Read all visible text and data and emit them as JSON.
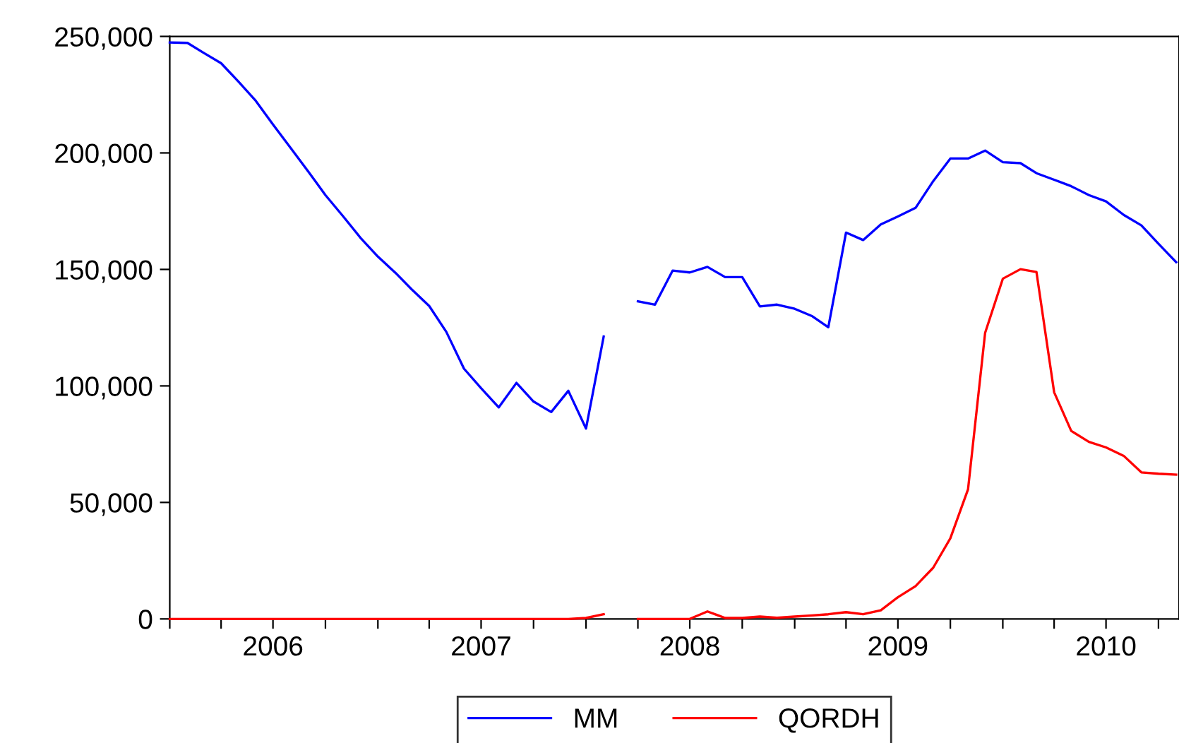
{
  "chart_data": {
    "type": "line",
    "x": [
      "2006-01",
      "2006-02",
      "2006-03",
      "2006-04",
      "2006-05",
      "2006-06",
      "2006-07",
      "2006-08",
      "2006-09",
      "2006-10",
      "2006-11",
      "2006-12",
      "2007-01",
      "2007-02",
      "2007-03",
      "2007-04",
      "2007-05",
      "2007-06",
      "2007-07",
      "2007-08",
      "2007-09",
      "2007-10",
      "2007-11",
      "2007-12",
      "2008-01",
      "2008-02",
      "2008-03",
      "2008-04",
      "2008-05",
      "2008-06",
      "2008-07",
      "2008-08",
      "2008-09",
      "2008-10",
      "2008-11",
      "2008-12",
      "2009-01",
      "2009-02",
      "2009-03",
      "2009-04",
      "2009-05",
      "2009-06",
      "2009-07",
      "2009-08",
      "2009-09",
      "2009-10",
      "2009-11",
      "2009-12",
      "2010-01",
      "2010-02",
      "2010-03",
      "2010-04",
      "2010-05",
      "2010-06",
      "2010-07",
      "2010-08",
      "2010-09",
      "2010-10",
      "2010-11"
    ],
    "series": [
      {
        "name": "MM",
        "color": "#0000ff",
        "values": [
          247400,
          247200,
          243000,
          238500,
          230700,
          222300,
          212200,
          202100,
          192000,
          181900,
          172800,
          163700,
          155500,
          148500,
          141500,
          134300,
          123200,
          107400,
          99000,
          90800,
          101300,
          93300,
          88800,
          97900,
          81700,
          121200,
          null,
          136300,
          134900,
          149500,
          148700,
          151100,
          146700,
          146700,
          134100,
          134900,
          133100,
          129900,
          125200,
          165800,
          162600,
          169300,
          172700,
          176400,
          187900,
          197600,
          197600,
          201000,
          196000,
          195600,
          191300,
          188500,
          185700,
          181900,
          179200,
          173400,
          168900,
          161000,
          153100
        ]
      },
      {
        "name": "QORDH",
        "color": "#ff0000",
        "values": [
          0,
          0,
          0,
          0,
          0,
          0,
          0,
          0,
          0,
          0,
          0,
          0,
          0,
          0,
          0,
          0,
          0,
          0,
          0,
          0,
          0,
          0,
          0,
          0,
          400,
          2000,
          null,
          0,
          0,
          0,
          0,
          3200,
          400,
          400,
          1000,
          500,
          1000,
          1500,
          2000,
          2900,
          2000,
          3700,
          9300,
          14100,
          22000,
          34600,
          55600,
          122800,
          146000,
          150100,
          148900,
          97300,
          80700,
          76000,
          73600,
          70000,
          62900,
          62300,
          61900
        ]
      }
    ],
    "xlim": [
      "2006-01-01",
      "2010-11-06"
    ],
    "xticks": [
      {
        "value": "2006-01-01",
        "label": null
      },
      {
        "value": "2006-04-01",
        "label": null
      },
      {
        "value": "2006-07-01",
        "label": "2006"
      },
      {
        "value": "2006-10-01",
        "label": null
      },
      {
        "value": "2007-01-01",
        "label": null
      },
      {
        "value": "2007-04-01",
        "label": null
      },
      {
        "value": "2007-07-01",
        "label": "2007"
      },
      {
        "value": "2007-10-01",
        "label": null
      },
      {
        "value": "2008-01-01",
        "label": null
      },
      {
        "value": "2008-04-01",
        "label": null
      },
      {
        "value": "2008-07-01",
        "label": "2008"
      },
      {
        "value": "2008-10-01",
        "label": null
      },
      {
        "value": "2009-01-01",
        "label": null
      },
      {
        "value": "2009-04-01",
        "label": null
      },
      {
        "value": "2009-07-01",
        "label": "2009"
      },
      {
        "value": "2009-10-01",
        "label": null
      },
      {
        "value": "2010-01-01",
        "label": null
      },
      {
        "value": "2010-04-01",
        "label": null
      },
      {
        "value": "2010-07-01",
        "label": "2010"
      },
      {
        "value": "2010-10-01",
        "label": null
      }
    ],
    "ylim": [
      0,
      250000
    ],
    "yticks": [
      0,
      {
        "value": 50000,
        "label": "50,000"
      },
      {
        "value": 100000,
        "label": "100,000"
      },
      {
        "value": 150000,
        "label": "150,000"
      },
      {
        "value": 200000,
        "label": "200,000"
      },
      {
        "value": 250000,
        "label": "250,000"
      }
    ],
    "grid": false,
    "legend": "bottom",
    "line_style": "solid"
  }
}
